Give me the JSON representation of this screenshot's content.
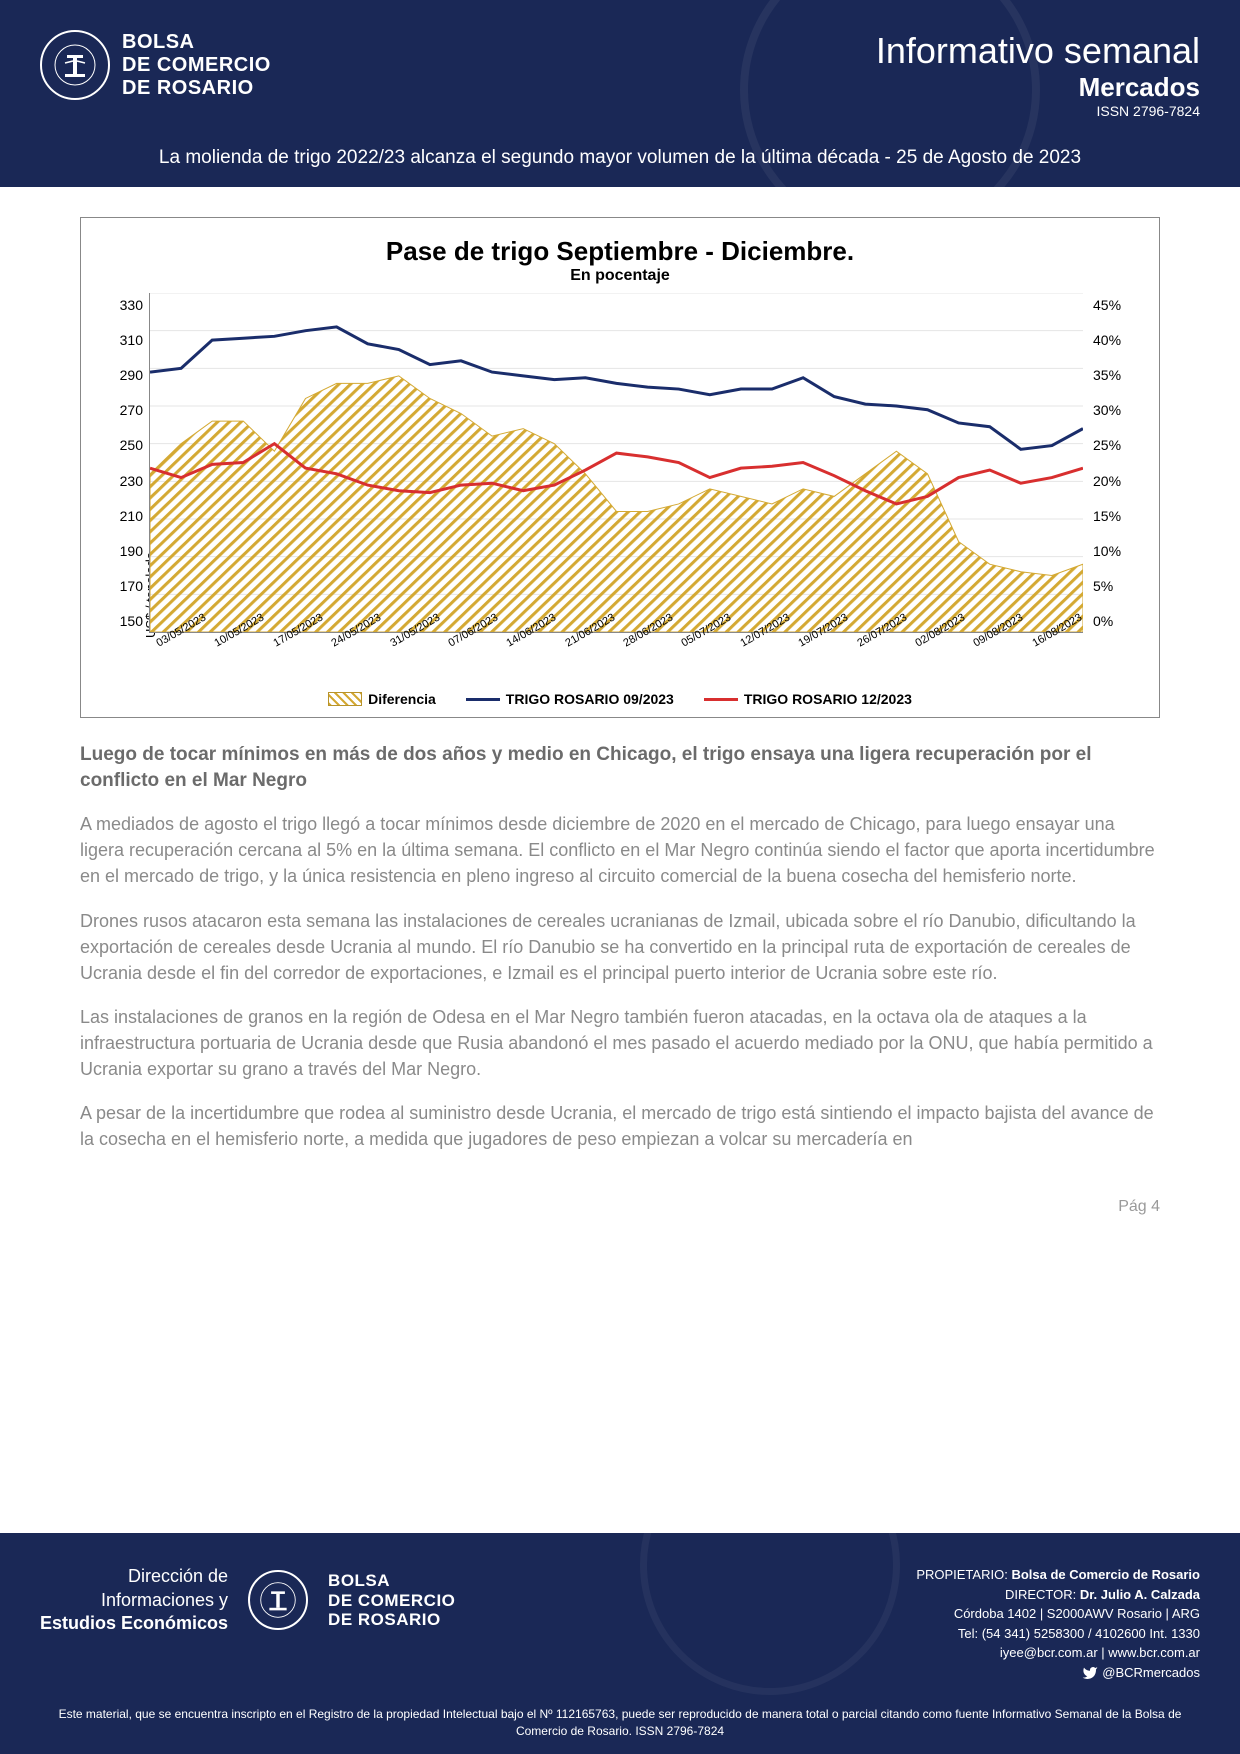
{
  "header": {
    "org_line1": "BOLSA",
    "org_line2": "DE COMERCIO",
    "org_line3": "DE ROSARIO",
    "title1": "Informativo semanal",
    "title2": "Mercados",
    "issn": "ISSN 2796-7824",
    "subtitle": "La molienda de trigo 2022/23 alcanza el segundo mayor volumen de la última década - 25 de Agosto de 2023"
  },
  "chart": {
    "title": "Pase de trigo Septiembre - Diciembre.",
    "subtitle": "En pocentaje",
    "y_left_label": "US$ / tonelada",
    "y_left_ticks": [
      "330",
      "310",
      "290",
      "270",
      "250",
      "230",
      "210",
      "190",
      "170",
      "150"
    ],
    "y_right_ticks": [
      "45%",
      "40%",
      "35%",
      "30%",
      "25%",
      "20%",
      "15%",
      "10%",
      "5%",
      "0%"
    ],
    "y_left_min": 150,
    "y_left_max": 330,
    "y_right_min": 0,
    "y_right_max": 45,
    "x_ticks": [
      "03/05/2023",
      "10/05/2023",
      "17/05/2023",
      "24/05/2023",
      "31/05/2023",
      "07/06/2023",
      "14/06/2023",
      "21/06/2023",
      "28/06/2023",
      "05/07/2023",
      "12/07/2023",
      "19/07/2023",
      "26/07/2023",
      "02/08/2023",
      "09/08/2023",
      "16/08/2023"
    ],
    "series": {
      "trigo_09": {
        "label": "TRIGO ROSARIO 09/2023",
        "color": "#1a2d6b",
        "width": 3,
        "values": [
          288,
          290,
          305,
          306,
          307,
          310,
          312,
          303,
          300,
          292,
          294,
          288,
          286,
          284,
          285,
          282,
          280,
          279,
          276,
          279,
          279,
          285,
          275,
          271,
          270,
          268,
          261,
          259,
          247,
          249,
          258
        ]
      },
      "trigo_12": {
        "label": "TRIGO ROSARIO 12/2023",
        "color": "#d82f2f",
        "width": 3,
        "values": [
          237,
          232,
          239,
          240,
          250,
          237,
          234,
          228,
          225,
          224,
          228,
          229,
          225,
          228,
          236,
          245,
          243,
          240,
          232,
          237,
          238,
          240,
          233,
          225,
          218,
          222,
          232,
          236,
          229,
          232,
          237
        ]
      },
      "diferencia": {
        "label": "Diferencia",
        "color_fill": "#d4a933",
        "values_pct": [
          21,
          25,
          28,
          28,
          24,
          31,
          33,
          33,
          34,
          31,
          29,
          26,
          27,
          25,
          21,
          16,
          16,
          17,
          19,
          18,
          17,
          19,
          18,
          21,
          24,
          21,
          12,
          9,
          8,
          7.5,
          9
        ]
      }
    },
    "legend": [
      {
        "type": "hatch",
        "label": "Diferencia"
      },
      {
        "type": "line",
        "color": "#1a2d6b",
        "label": "TRIGO ROSARIO 09/2023"
      },
      {
        "type": "line",
        "color": "#d82f2f",
        "label": "TRIGO ROSARIO 12/2023"
      }
    ],
    "background_color": "#ffffff",
    "grid_color": "#e5e5e5",
    "border_color": "#888"
  },
  "body": {
    "heading": "Luego de tocar mínimos en más de dos años y medio en Chicago, el trigo ensaya una ligera recuperación por el conflicto en el Mar Negro",
    "p1": "A mediados de agosto el trigo llegó a tocar mínimos desde diciembre de 2020 en el mercado de Chicago, para luego ensayar una ligera recuperación cercana al 5% en la última semana. El conflicto en el Mar Negro continúa siendo el factor que aporta incertidumbre en el mercado de trigo, y la única resistencia en pleno ingreso al circuito comercial de la buena cosecha del hemisferio norte.",
    "p2": "Drones rusos atacaron esta semana las instalaciones de cereales ucranianas de Izmail, ubicada sobre el río Danubio, dificultando la exportación de cereales desde Ucrania al mundo. El río Danubio se ha convertido en la principal ruta de exportación de cereales de Ucrania desde el fin del corredor de exportaciones, e Izmail es el principal puerto interior de Ucrania sobre este río.",
    "p3": "Las instalaciones de granos en la región de Odesa en el Mar Negro también fueron atacadas, en la octava ola de ataques a la infraestructura portuaria de Ucrania desde que Rusia abandonó el mes pasado el acuerdo mediado por la ONU, que había permitido a Ucrania exportar su grano a través del Mar Negro.",
    "p4": "A pesar de la incertidumbre que rodea al suministro desde Ucrania, el mercado de trigo está sintiendo el impacto bajista del avance de la cosecha en el hemisferio norte, a medida que jugadores de peso empiezan a volcar su mercadería en",
    "page_num": "Pág 4"
  },
  "footer": {
    "dept_line1": "Dirección de",
    "dept_line2": "Informaciones y",
    "dept_line3": "Estudios Económicos",
    "org_line1": "BOLSA",
    "org_line2": "DE COMERCIO",
    "org_line3": "DE ROSARIO",
    "propietario_label": "PROPIETARIO:",
    "propietario_value": "Bolsa de Comercio de Rosario",
    "director_label": "DIRECTOR:",
    "director_value": "Dr. Julio A. Calzada",
    "address": "Córdoba 1402 | S2000AWV Rosario | ARG",
    "tel": "Tel: (54 341) 5258300 / 4102600 Int. 1330",
    "email_web": "iyee@bcr.com.ar | www.bcr.com.ar",
    "twitter": "@BCRmercados",
    "disclaimer": "Este material, que se encuentra inscripto en el Registro de la propiedad Intelectual bajo el Nº 112165763, puede ser reproducido de manera total o parcial citando como fuente Informativo Semanal de la Bolsa de Comercio de Rosario. ISSN 2796-7824"
  }
}
